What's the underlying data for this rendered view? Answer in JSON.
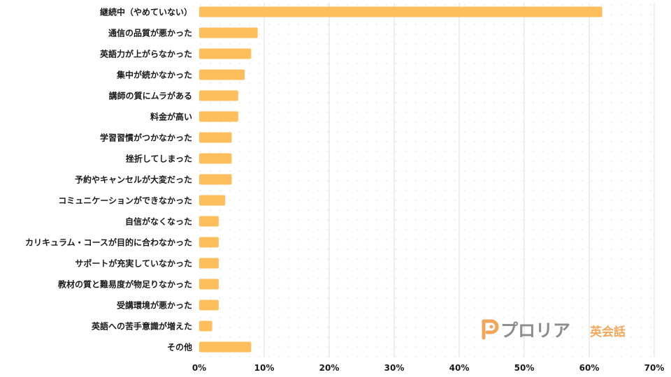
{
  "chart_data": {
    "type": "bar",
    "orientation": "horizontal",
    "categories": [
      "継続中（やめていない）",
      "通信の品質が悪かった",
      "英語力が上がらなかった",
      "集中が続かなかった",
      "講師の質にムラがある",
      "料金が高い",
      "学習習慣がつかなかった",
      "挫折してしまった",
      "予約やキャンセルが大変だった",
      "コミュニケーションができなかった",
      "自信がなくなった",
      "カリキュラム・コースが目的に合わなかった",
      "サポートが充実していなかった",
      "教材の質と難易度が物足りなかった",
      "受講環境が悪かった",
      "英語への苦手意識が増えた",
      "その他"
    ],
    "values": [
      62,
      9,
      8,
      7,
      6,
      6,
      5,
      5,
      5,
      4,
      3,
      3,
      3,
      3,
      3,
      2,
      8
    ],
    "xlim": [
      0,
      70
    ],
    "xticks": [
      0,
      10,
      20,
      30,
      40,
      50,
      60,
      70
    ],
    "tick_suffix": "%",
    "grid": true,
    "bar_color": "#FFBE5C",
    "grid_color": "#DDDDDD"
  },
  "watermark": {
    "brand_name": "プロリア",
    "brand_sub": "英会話",
    "accent_color": "#F2A65A",
    "text_color": "#8C8C8C"
  }
}
